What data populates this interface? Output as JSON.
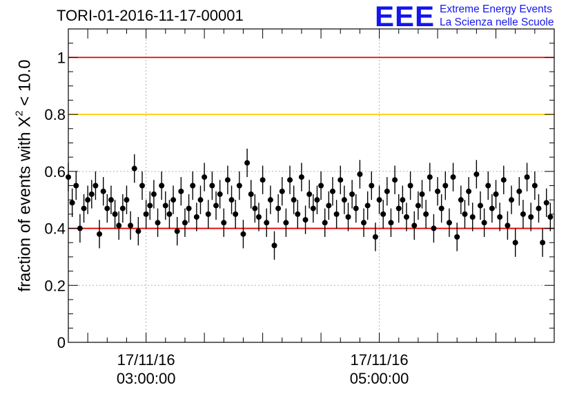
{
  "header": {
    "title": "TORI-01-2016-11-17-00001",
    "logo": "EEE",
    "logo_line1": "Extreme Energy Events",
    "logo_line2": "La Scienza nelle Scuole"
  },
  "colors": {
    "brand": "#1515ee",
    "red_line": "#e00000",
    "yellow_line": "#ffcc00",
    "marker": "#000000"
  },
  "chart_data": {
    "type": "scatter",
    "title": "TORI-01-2016-11-17-00001",
    "ylabel_pre": "fraction of events with ",
    "ylabel_sym": "X",
    "ylabel_sup": "2",
    "ylabel_post": " < 10.0",
    "xlim": [
      "02:20",
      "06:30"
    ],
    "ylim": [
      0,
      1.1
    ],
    "grid": true,
    "x_ticks": [
      {
        "x": "03:00",
        "date": "17/11/16",
        "time": "03:00:00"
      },
      {
        "x": "05:00",
        "date": "17/11/16",
        "time": "05:00:00"
      }
    ],
    "y_ticks": [
      {
        "v": 0,
        "label": "0"
      },
      {
        "v": 0.2,
        "label": "0.2"
      },
      {
        "v": 0.4,
        "label": "0.4"
      },
      {
        "v": 0.6,
        "label": "0.6"
      },
      {
        "v": 0.8,
        "label": "0.8"
      },
      {
        "v": 1.0,
        "label": "1"
      }
    ],
    "reference_lines": [
      {
        "y": 1.0,
        "color": "#e00000"
      },
      {
        "y": 0.8,
        "color": "#ffcc00"
      },
      {
        "y": 0.4,
        "color": "#e00000"
      }
    ],
    "x": [
      "02:20",
      "02:22",
      "02:24",
      "02:26",
      "02:28",
      "02:30",
      "02:32",
      "02:34",
      "02:36",
      "02:38",
      "02:40",
      "02:42",
      "02:44",
      "02:46",
      "02:48",
      "02:50",
      "02:52",
      "02:54",
      "02:56",
      "02:58",
      "03:00",
      "03:02",
      "03:04",
      "03:06",
      "03:08",
      "03:10",
      "03:12",
      "03:14",
      "03:16",
      "03:18",
      "03:20",
      "03:22",
      "03:24",
      "03:26",
      "03:28",
      "03:30",
      "03:32",
      "03:34",
      "03:36",
      "03:38",
      "03:40",
      "03:42",
      "03:44",
      "03:46",
      "03:48",
      "03:50",
      "03:52",
      "03:54",
      "03:56",
      "03:58",
      "04:00",
      "04:02",
      "04:04",
      "04:06",
      "04:08",
      "04:10",
      "04:12",
      "04:14",
      "04:16",
      "04:18",
      "04:20",
      "04:22",
      "04:24",
      "04:26",
      "04:28",
      "04:30",
      "04:32",
      "04:34",
      "04:36",
      "04:38",
      "04:40",
      "04:42",
      "04:44",
      "04:46",
      "04:48",
      "04:50",
      "04:52",
      "04:54",
      "04:56",
      "04:58",
      "05:00",
      "05:02",
      "05:04",
      "05:06",
      "05:08",
      "05:10",
      "05:12",
      "05:14",
      "05:16",
      "05:18",
      "05:20",
      "05:22",
      "05:24",
      "05:26",
      "05:28",
      "05:30",
      "05:32",
      "05:34",
      "05:36",
      "05:38",
      "05:40",
      "05:42",
      "05:44",
      "05:46",
      "05:48",
      "05:50",
      "05:52",
      "05:54",
      "05:56",
      "05:58",
      "06:00",
      "06:02",
      "06:04",
      "06:06",
      "06:08",
      "06:10",
      "06:12",
      "06:14",
      "06:16",
      "06:18",
      "06:20",
      "06:22",
      "06:24",
      "06:26",
      "06:28"
    ],
    "y": [
      0.58,
      0.49,
      0.55,
      0.4,
      0.47,
      0.5,
      0.52,
      0.55,
      0.38,
      0.53,
      0.47,
      0.5,
      0.45,
      0.41,
      0.47,
      0.5,
      0.41,
      0.61,
      0.39,
      0.55,
      0.45,
      0.48,
      0.52,
      0.42,
      0.55,
      0.48,
      0.45,
      0.5,
      0.39,
      0.53,
      0.42,
      0.47,
      0.55,
      0.44,
      0.5,
      0.58,
      0.45,
      0.55,
      0.48,
      0.52,
      0.42,
      0.57,
      0.5,
      0.45,
      0.55,
      0.38,
      0.63,
      0.52,
      0.47,
      0.44,
      0.57,
      0.42,
      0.5,
      0.34,
      0.47,
      0.53,
      0.42,
      0.57,
      0.5,
      0.45,
      0.58,
      0.43,
      0.52,
      0.47,
      0.5,
      0.55,
      0.42,
      0.48,
      0.53,
      0.45,
      0.57,
      0.5,
      0.44,
      0.52,
      0.47,
      0.59,
      0.42,
      0.48,
      0.55,
      0.37,
      0.5,
      0.45,
      0.53,
      0.42,
      0.57,
      0.47,
      0.5,
      0.44,
      0.55,
      0.41,
      0.48,
      0.52,
      0.45,
      0.58,
      0.4,
      0.53,
      0.47,
      0.55,
      0.42,
      0.58,
      0.37,
      0.5,
      0.45,
      0.53,
      0.44,
      0.59,
      0.48,
      0.42,
      0.55,
      0.47,
      0.52,
      0.44,
      0.57,
      0.41,
      0.5,
      0.35,
      0.53,
      0.45,
      0.58,
      0.44,
      0.55,
      0.47,
      0.35,
      0.49,
      0.44
    ],
    "y_error": 0.05
  }
}
